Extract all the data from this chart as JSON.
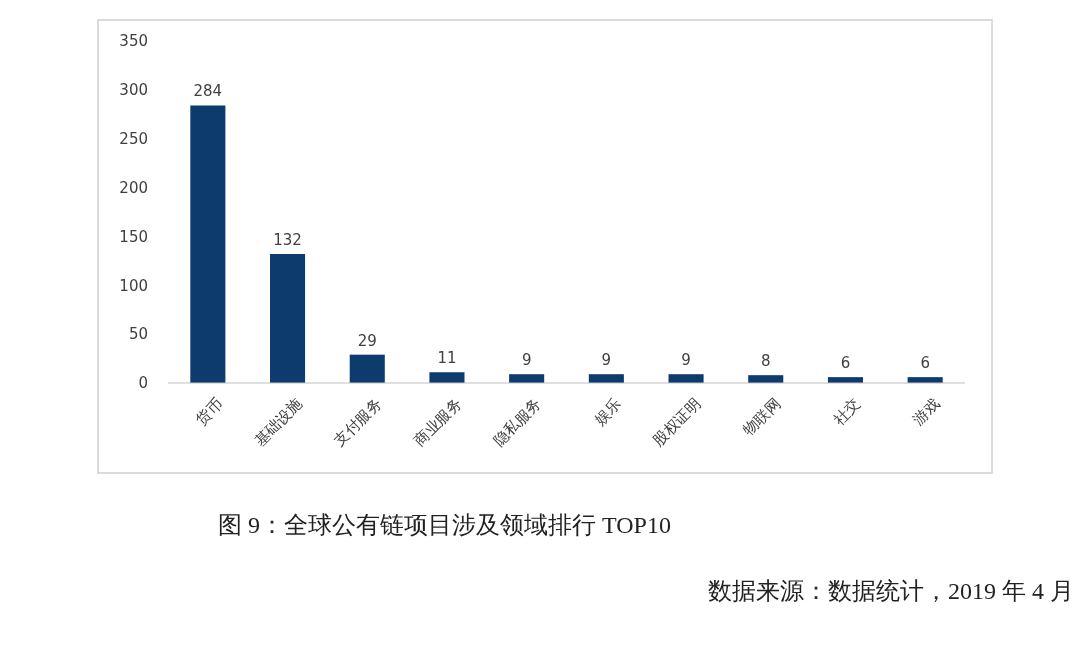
{
  "chart_data": {
    "type": "bar",
    "title": "图 9：全球公有链项目涉及领域排行 TOP10",
    "categories": [
      "货币",
      "基础设施",
      "支付服务",
      "商业服务",
      "隐私服务",
      "娱乐",
      "股权证明",
      "物联网",
      "社交",
      "游戏"
    ],
    "values": [
      284,
      132,
      29,
      11,
      9,
      9,
      9,
      8,
      6,
      6
    ],
    "color": "#0d3b6e",
    "ylim": [
      0,
      350
    ],
    "yticks": [
      0,
      50,
      100,
      150,
      200,
      250,
      300,
      350
    ],
    "data_labels": true,
    "annotations": [
      "数据来源：数据统计，2019 年 4 月"
    ]
  }
}
